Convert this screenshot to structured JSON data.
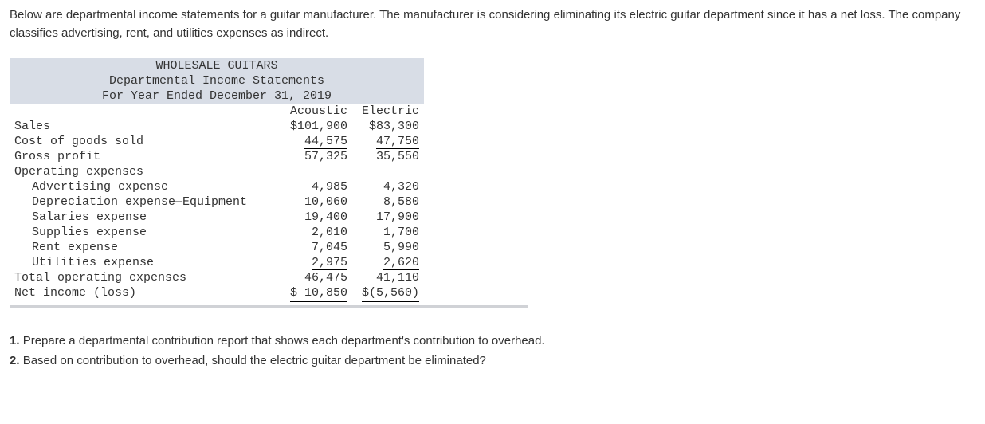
{
  "intro": "Below are departmental income statements for a guitar manufacturer. The manufacturer is considering eliminating its electric guitar department since it has a net loss. The company classifies advertising, rent, and utilities expenses as indirect.",
  "statement": {
    "header1": "WHOLESALE GUITARS",
    "header2": "Departmental Income Statements",
    "header3": "For Year Ended December 31, 2019",
    "col1": "Acoustic",
    "col2": "Electric",
    "rows": {
      "sales": {
        "label": "Sales",
        "c1": "$101,900",
        "c2": "$83,300"
      },
      "cogs": {
        "label": "Cost of goods sold",
        "c1": "44,575",
        "c2": "47,750"
      },
      "gross": {
        "label": "Gross profit",
        "c1": "57,325",
        "c2": "35,550"
      },
      "opex_label": {
        "label": "Operating expenses"
      },
      "adv": {
        "label": "Advertising expense",
        "c1": "4,985",
        "c2": "4,320"
      },
      "dep": {
        "label": "Depreciation expense—Equipment",
        "c1": "10,060",
        "c2": "8,580"
      },
      "sal": {
        "label": "Salaries expense",
        "c1": "19,400",
        "c2": "17,900"
      },
      "sup": {
        "label": "Supplies expense",
        "c1": "2,010",
        "c2": "1,700"
      },
      "rent": {
        "label": "Rent expense",
        "c1": "7,045",
        "c2": "5,990"
      },
      "util": {
        "label": "Utilities expense",
        "c1": "2,975",
        "c2": "2,620"
      },
      "total_opex": {
        "label": "Total operating expenses",
        "c1": "46,475",
        "c2": "41,110"
      },
      "net": {
        "label": "Net income (loss)",
        "c1": "$ 10,850",
        "c2": "$(5,560)"
      }
    }
  },
  "questions": {
    "q1num": "1.",
    "q1": "Prepare a departmental contribution report that shows each department's contribution to overhead.",
    "q2num": "2.",
    "q2": "Based on contribution to overhead, should the electric guitar department be eliminated?"
  }
}
